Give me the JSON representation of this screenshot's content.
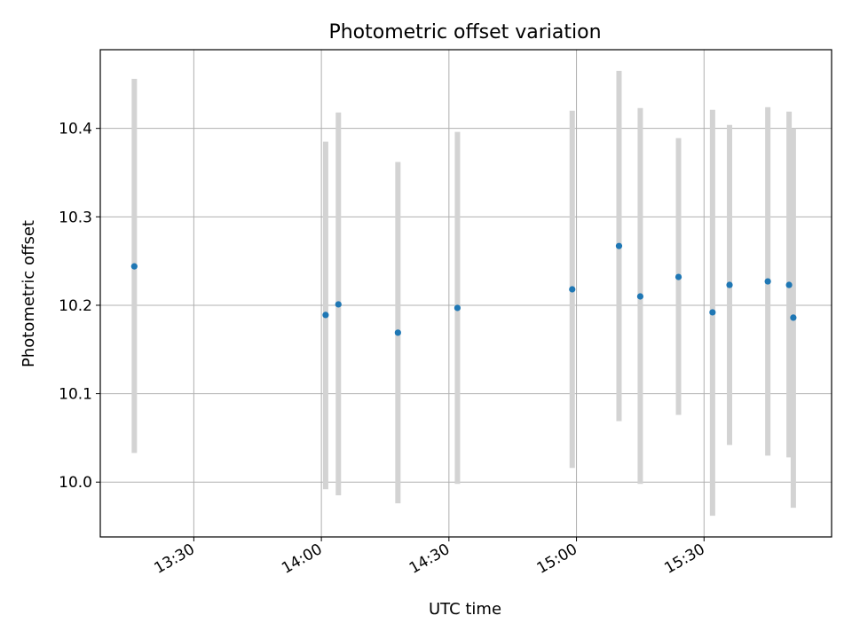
{
  "chart_data": {
    "type": "scatter",
    "title": "Photometric offset variation",
    "xlabel": "UTC time",
    "ylabel": "Photometric offset",
    "x_ticks": [
      "13:30",
      "14:00",
      "14:30",
      "15:00",
      "15:30"
    ],
    "y_ticks": [
      "10.0",
      "10.1",
      "10.2",
      "10.3",
      "10.4"
    ],
    "xlim": [
      "13:08",
      "16:00"
    ],
    "ylim": [
      9.938,
      10.489
    ],
    "grid": true,
    "legend": "none",
    "point_color": "#1f77b4",
    "errorbar_color": "#d3d3d3",
    "series": [
      {
        "points": [
          {
            "t": "13:16",
            "y": 10.244,
            "ylow": 10.033,
            "yhigh": 10.456
          },
          {
            "t": "14:01",
            "y": 10.189,
            "ylow": 9.992,
            "yhigh": 10.385
          },
          {
            "t": "14:04",
            "y": 10.201,
            "ylow": 9.985,
            "yhigh": 10.418
          },
          {
            "t": "14:18",
            "y": 10.169,
            "ylow": 9.976,
            "yhigh": 10.362
          },
          {
            "t": "14:32",
            "y": 10.197,
            "ylow": 9.998,
            "yhigh": 10.396
          },
          {
            "t": "14:59",
            "y": 10.218,
            "ylow": 10.016,
            "yhigh": 10.42
          },
          {
            "t": "15:10",
            "y": 10.267,
            "ylow": 10.069,
            "yhigh": 10.465
          },
          {
            "t": "15:15",
            "y": 10.21,
            "ylow": 9.998,
            "yhigh": 10.423
          },
          {
            "t": "15:24",
            "y": 10.232,
            "ylow": 10.076,
            "yhigh": 10.389
          },
          {
            "t": "15:32",
            "y": 10.192,
            "ylow": 9.962,
            "yhigh": 10.421
          },
          {
            "t": "15:36",
            "y": 10.223,
            "ylow": 10.042,
            "yhigh": 10.404
          },
          {
            "t": "15:45",
            "y": 10.227,
            "ylow": 10.03,
            "yhigh": 10.424
          },
          {
            "t": "15:50",
            "y": 10.223,
            "ylow": 10.028,
            "yhigh": 10.419
          },
          {
            "t": "15:51",
            "y": 10.186,
            "ylow": 9.971,
            "yhigh": 10.4
          }
        ]
      }
    ]
  }
}
